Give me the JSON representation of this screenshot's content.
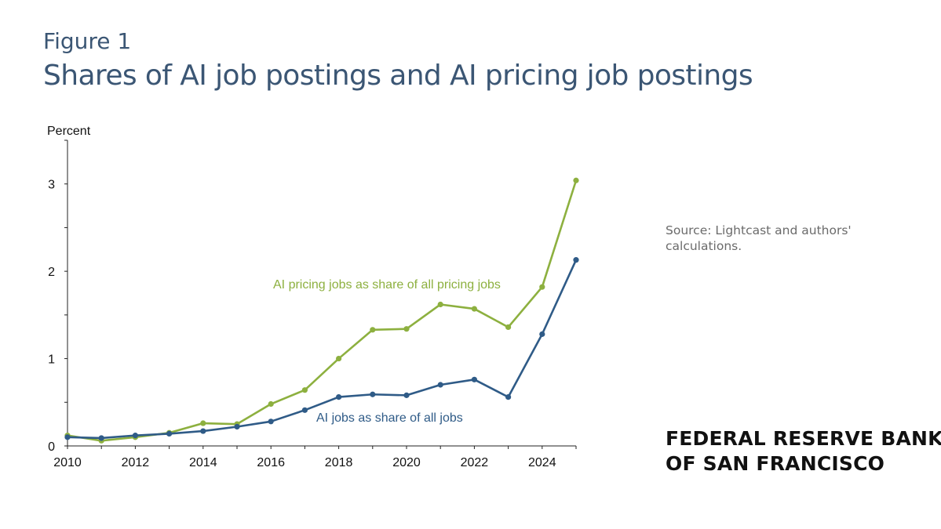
{
  "figure_label": "Figure 1",
  "title": "Shares of AI job postings and AI pricing job postings",
  "source": "Source: Lightcast and authors' calculations.",
  "brand": {
    "line1": "FEDERAL RESERVE BANK",
    "line2": "OF SAN FRANCISCO"
  },
  "colors": {
    "title": "#3b5674",
    "pricing": "#8db03f",
    "ai": "#2f5b87",
    "source": "#6b6b6b"
  },
  "chart_data": {
    "type": "line",
    "ylabel": "Percent",
    "x": [
      2010,
      2011,
      2012,
      2013,
      2014,
      2015,
      2016,
      2017,
      2018,
      2019,
      2020,
      2021,
      2022,
      2023,
      2024,
      2025
    ],
    "xlim": [
      2010,
      2025
    ],
    "ylim": [
      0,
      3.5
    ],
    "x_ticks": [
      2010,
      2012,
      2014,
      2016,
      2018,
      2020,
      2022,
      2024
    ],
    "y_ticks": [
      0,
      1,
      2,
      3
    ],
    "grid": false,
    "series": [
      {
        "name": "AI pricing jobs as share of all pricing jobs",
        "color": "#8db03f",
        "values": [
          0.12,
          0.06,
          0.1,
          0.15,
          0.26,
          0.25,
          0.48,
          0.64,
          1.0,
          1.33,
          1.34,
          1.62,
          1.57,
          1.36,
          1.82,
          3.04
        ]
      },
      {
        "name": "AI jobs as share of all jobs",
        "color": "#2f5b87",
        "values": [
          0.1,
          0.09,
          0.12,
          0.14,
          0.17,
          0.22,
          0.28,
          0.41,
          0.56,
          0.59,
          0.58,
          0.7,
          0.76,
          0.56,
          1.28,
          2.13
        ]
      }
    ]
  }
}
